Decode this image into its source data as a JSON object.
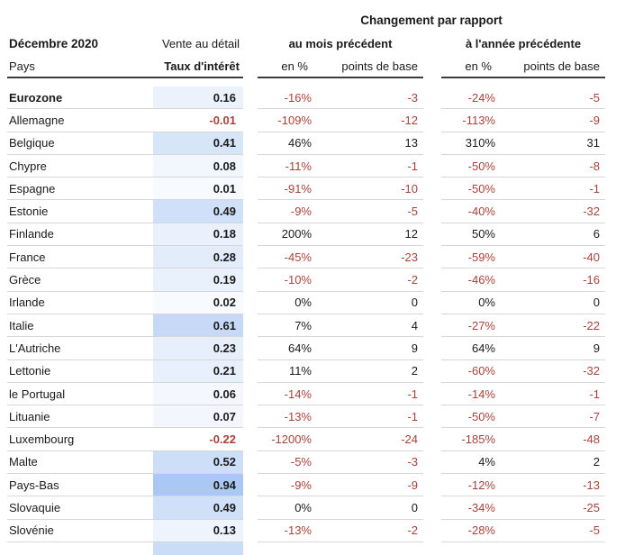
{
  "chart_data": {
    "type": "table",
    "header": {
      "change_title": "Changement par rapport",
      "period": "Décembre 2020",
      "retail_label": "Vente au détail",
      "country_col": "Pays",
      "rate_col": "Taux d'intérêt",
      "month_group": "au mois précédent",
      "year_group": "à l'année précédente",
      "pct_col": "en %",
      "bp_col": "points de base"
    },
    "colors": {
      "negative_text": "#a8423a",
      "positive_text": "#1a1a1a",
      "heat_blue_max": "#aac8f3",
      "header_rule": "#3c3c3c",
      "row_rule": "#d6d6d6"
    },
    "heat_scale": {
      "min": 0,
      "max": 0.94
    },
    "rows": [
      {
        "country": "Eurozone",
        "bold": true,
        "rate": "0.16",
        "rate_value": 0.16,
        "month_pct": "-16%",
        "month_bp": "-3",
        "year_pct": "-24%",
        "year_bp": "-5"
      },
      {
        "country": "Allemagne",
        "bold": false,
        "rate": "-0.01",
        "rate_value": -0.01,
        "month_pct": "-109%",
        "month_bp": "-12",
        "year_pct": "-113%",
        "year_bp": "-9"
      },
      {
        "country": "Belgique",
        "bold": false,
        "rate": "0.41",
        "rate_value": 0.41,
        "month_pct": "46%",
        "month_bp": "13",
        "year_pct": "310%",
        "year_bp": "31"
      },
      {
        "country": "Chypre",
        "bold": false,
        "rate": "0.08",
        "rate_value": 0.08,
        "month_pct": "-11%",
        "month_bp": "-1",
        "year_pct": "-50%",
        "year_bp": "-8"
      },
      {
        "country": "Espagne",
        "bold": false,
        "rate": "0.01",
        "rate_value": 0.01,
        "month_pct": "-91%",
        "month_bp": "-10",
        "year_pct": "-50%",
        "year_bp": "-1"
      },
      {
        "country": "Estonie",
        "bold": false,
        "rate": "0.49",
        "rate_value": 0.49,
        "month_pct": "-9%",
        "month_bp": "-5",
        "year_pct": "-40%",
        "year_bp": "-32"
      },
      {
        "country": "Finlande",
        "bold": false,
        "rate": "0.18",
        "rate_value": 0.18,
        "month_pct": "200%",
        "month_bp": "12",
        "year_pct": "50%",
        "year_bp": "6"
      },
      {
        "country": "France",
        "bold": false,
        "rate": "0.28",
        "rate_value": 0.28,
        "month_pct": "-45%",
        "month_bp": "-23",
        "year_pct": "-59%",
        "year_bp": "-40"
      },
      {
        "country": "Grèce",
        "bold": false,
        "rate": "0.19",
        "rate_value": 0.19,
        "month_pct": "-10%",
        "month_bp": "-2",
        "year_pct": "-46%",
        "year_bp": "-16"
      },
      {
        "country": "Irlande",
        "bold": false,
        "rate": "0.02",
        "rate_value": 0.02,
        "month_pct": "0%",
        "month_bp": "0",
        "year_pct": "0%",
        "year_bp": "0"
      },
      {
        "country": "Italie",
        "bold": false,
        "rate": "0.61",
        "rate_value": 0.61,
        "month_pct": "7%",
        "month_bp": "4",
        "year_pct": "-27%",
        "year_bp": "-22"
      },
      {
        "country": "L'Autriche",
        "bold": false,
        "rate": "0.23",
        "rate_value": 0.23,
        "month_pct": "64%",
        "month_bp": "9",
        "year_pct": "64%",
        "year_bp": "9"
      },
      {
        "country": "Lettonie",
        "bold": false,
        "rate": "0.21",
        "rate_value": 0.21,
        "month_pct": "11%",
        "month_bp": "2",
        "year_pct": "-60%",
        "year_bp": "-32"
      },
      {
        "country": "le Portugal",
        "bold": false,
        "rate": "0.06",
        "rate_value": 0.06,
        "month_pct": "-14%",
        "month_bp": "-1",
        "year_pct": "-14%",
        "year_bp": "-1"
      },
      {
        "country": "Lituanie",
        "bold": false,
        "rate": "0.07",
        "rate_value": 0.07,
        "month_pct": "-13%",
        "month_bp": "-1",
        "year_pct": "-50%",
        "year_bp": "-7"
      },
      {
        "country": "Luxembourg",
        "bold": false,
        "rate": "-0.22",
        "rate_value": -0.22,
        "month_pct": "-1200%",
        "month_bp": "-24",
        "year_pct": "-185%",
        "year_bp": "-48"
      },
      {
        "country": "Malte",
        "bold": false,
        "rate": "0.52",
        "rate_value": 0.52,
        "month_pct": "-5%",
        "month_bp": "-3",
        "year_pct": "4%",
        "year_bp": "2"
      },
      {
        "country": "Pays-Bas",
        "bold": false,
        "rate": "0.94",
        "rate_value": 0.94,
        "month_pct": "-9%",
        "month_bp": "-9",
        "year_pct": "-12%",
        "year_bp": "-13"
      },
      {
        "country": "Slovaquie",
        "bold": false,
        "rate": "0.49",
        "rate_value": 0.49,
        "month_pct": "0%",
        "month_bp": "0",
        "year_pct": "-34%",
        "year_bp": "-25"
      },
      {
        "country": "Slovénie",
        "bold": false,
        "rate": "0.13",
        "rate_value": 0.13,
        "month_pct": "-13%",
        "month_bp": "-2",
        "year_pct": "-28%",
        "year_bp": "-5"
      }
    ]
  }
}
